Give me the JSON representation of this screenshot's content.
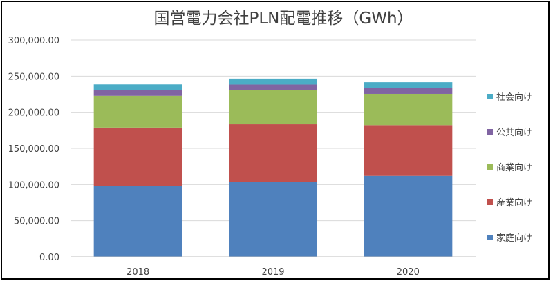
{
  "chart_data": {
    "type": "bar",
    "stacked": true,
    "title": "国営電力会社PLN配電推移（GWh）",
    "xlabel": "",
    "ylabel": "",
    "categories": [
      "2018",
      "2019",
      "2020"
    ],
    "ylim": [
      0,
      300000
    ],
    "yticks": [
      0,
      50000,
      100000,
      150000,
      200000,
      250000,
      300000
    ],
    "ytick_labels": [
      "0.00",
      "50,000.00",
      "100,000.00",
      "150,000.00",
      "200,000.00",
      "250,000.00",
      "300,000.00"
    ],
    "grid": true,
    "legend_position": "right",
    "series": [
      {
        "name": "家庭向け",
        "color": "#4F81BD",
        "values": [
          97800,
          103700,
          112000
        ]
      },
      {
        "name": "産業向け",
        "color": "#C0504D",
        "values": [
          81000,
          79700,
          70200
        ]
      },
      {
        "name": "商業向け",
        "color": "#9BBB59",
        "values": [
          44000,
          47300,
          43300
        ]
      },
      {
        "name": "公共向け",
        "color": "#8064A2",
        "values": [
          8000,
          7700,
          7800
        ]
      },
      {
        "name": "社会向け",
        "color": "#4BACC6",
        "values": [
          7800,
          8200,
          8300
        ]
      }
    ]
  }
}
